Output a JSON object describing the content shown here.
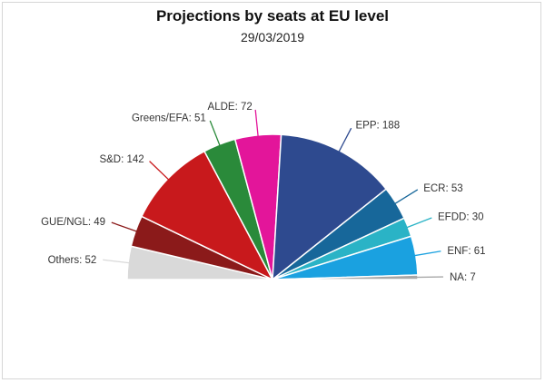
{
  "chart_data": {
    "type": "pie",
    "subtype": "semicircle",
    "title": "Projections by seats at EU level",
    "subtitle": "29/03/2019",
    "slices": [
      {
        "label": "Others",
        "value": 52,
        "color": "#d9d9d9"
      },
      {
        "label": "GUE/NGL",
        "value": 49,
        "color": "#8b1a1a"
      },
      {
        "label": "S&D",
        "value": 142,
        "color": "#c8191c"
      },
      {
        "label": "Greens/EFA",
        "value": 51,
        "color": "#2a8a3a"
      },
      {
        "label": "ALDE",
        "value": 72,
        "color": "#e3159a"
      },
      {
        "label": "EPP",
        "value": 188,
        "color": "#2e4a8f"
      },
      {
        "label": "ECR",
        "value": 53,
        "color": "#17679a"
      },
      {
        "label": "EFDD",
        "value": 30,
        "color": "#2ab3c6"
      },
      {
        "label": "ENF",
        "value": 61,
        "color": "#1aa1e0"
      },
      {
        "label": "NA",
        "value": 7,
        "color": "#a8a8a8"
      }
    ]
  }
}
